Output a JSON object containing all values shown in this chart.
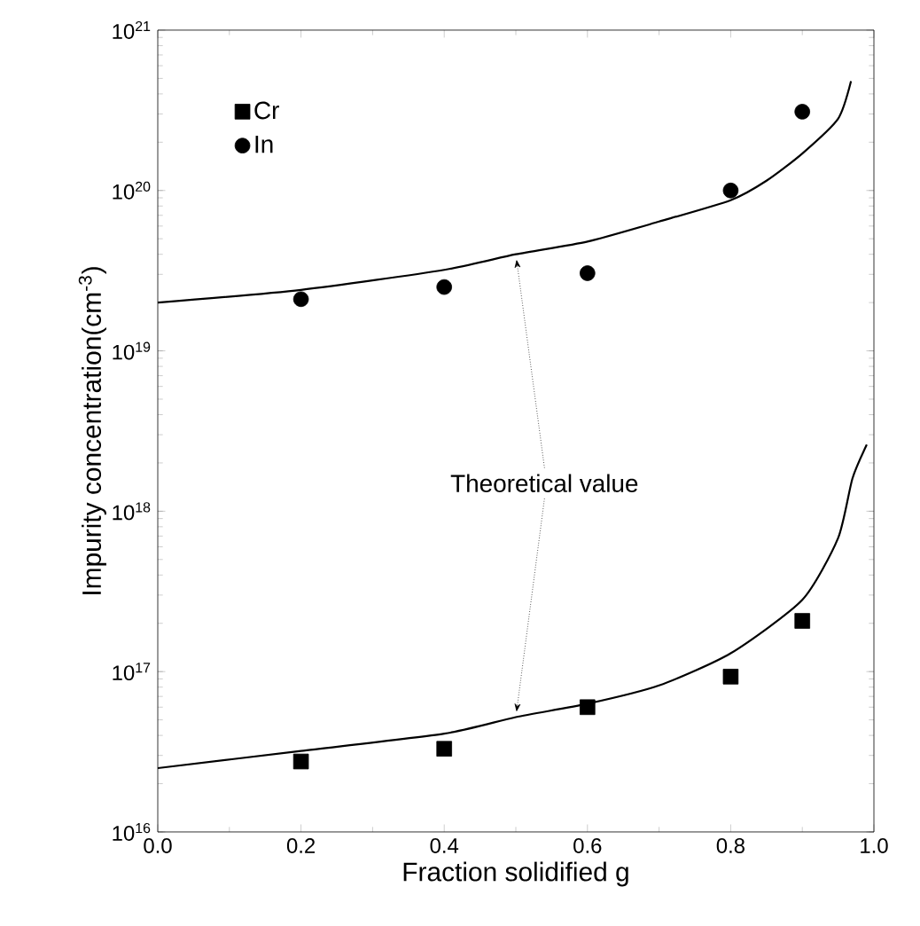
{
  "chart_data": {
    "type": "scatter",
    "xlabel": "Fraction solidified g",
    "ylabel": "Impurity concentration(cm$^{-3}$)",
    "log": "y",
    "xlim": [
      0.0,
      1.0
    ],
    "xticks": [
      {
        "value": 0.0,
        "label": "0.0"
      },
      0.2,
      0.4,
      0.6,
      0.8,
      {
        "value": 1.0,
        "label": "1.0"
      }
    ],
    "ylim": [
      1e+16,
      1e+21
    ],
    "yticks": [
      {
        "value": 1e+16,
        "label": "10$^{16}$"
      },
      {
        "value": 1e+17,
        "label": "10$^{17}$"
      },
      {
        "value": 1e+18,
        "label": "10$^{18}$"
      },
      {
        "value": 1e+19,
        "label": "10$^{19}$"
      },
      {
        "value": 1e+20,
        "label": "10$^{20}$"
      },
      {
        "value": 1e+21,
        "label": "10$^{21}$"
      }
    ],
    "legend": "top left",
    "grid": false,
    "annotations": [
      {
        "text": "Theoretical value",
        "x": 0.5,
        "y": 4e+19
      }
    ],
    "series": [
      {
        "name": "Cr",
        "color": "#000000",
        "marker": "square",
        "x": [
          0.2,
          0.4,
          0.6,
          0.8,
          0.9
        ],
        "values": [
          2.75e+16,
          3.3e+16,
          6e+16,
          9.3e+16,
          2.07e+17
        ]
      },
      {
        "name": "In",
        "color": "#000000",
        "marker": "circle",
        "x": [
          0.2,
          0.4,
          0.6,
          0.8,
          0.9
        ],
        "values": [
          2.1e+19,
          2.5e+19,
          3.05e+19,
          1e+20,
          3.1e+20
        ]
      },
      {
        "type": "line",
        "color": "#000000",
        "x": [
          0.0,
          0.2,
          0.4,
          0.5,
          0.6,
          0.7,
          0.8,
          0.9,
          0.95,
          0.97,
          0.99
        ],
        "values": [
          2.5e+16,
          3.2e+16,
          4.1e+16,
          5.2e+16,
          6.3e+16,
          8.2e+16,
          1.3e+17,
          2.8e+17,
          6.8e+17,
          1.6e+18,
          2.6e+18
        ]
      },
      {
        "type": "line",
        "color": "#000000",
        "x": [
          0.0,
          0.2,
          0.4,
          0.5,
          0.6,
          0.7,
          0.8,
          0.85,
          0.9,
          0.95,
          0.968
        ],
        "values": [
          2e+19,
          2.4e+19,
          3.2e+19,
          4e+19,
          4.8e+19,
          6.4e+19,
          8.7e+19,
          1.15e+20,
          1.7e+20,
          2.8e+20,
          4.8e+20
        ]
      }
    ]
  }
}
